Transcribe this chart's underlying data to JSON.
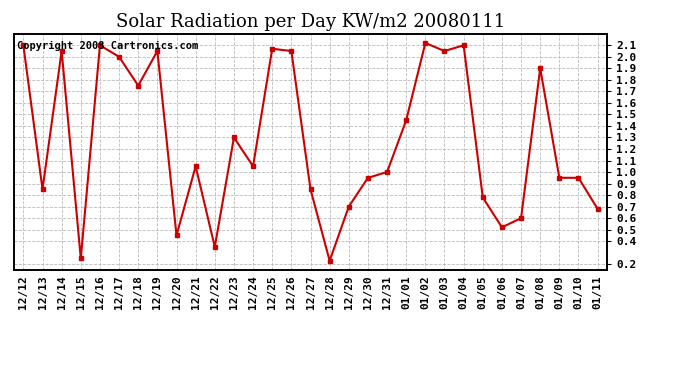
{
  "title": "Solar Radiation per Day KW/m2 20080111",
  "copyright": "Copyright 2008 Cartronics.com",
  "labels": [
    "12/12",
    "12/13",
    "12/14",
    "12/15",
    "12/16",
    "12/17",
    "12/18",
    "12/19",
    "12/20",
    "12/21",
    "12/22",
    "12/23",
    "12/24",
    "12/25",
    "12/26",
    "12/27",
    "12/28",
    "12/29",
    "12/30",
    "12/31",
    "01/01",
    "01/02",
    "01/03",
    "01/04",
    "01/05",
    "01/06",
    "01/07",
    "01/08",
    "01/09",
    "01/10",
    "01/11"
  ],
  "values": [
    2.1,
    0.85,
    2.05,
    0.25,
    2.1,
    2.0,
    1.75,
    2.05,
    0.45,
    1.05,
    0.35,
    1.3,
    1.05,
    2.07,
    2.05,
    0.85,
    0.23,
    0.7,
    0.95,
    1.0,
    1.45,
    2.12,
    2.05,
    2.1,
    0.78,
    0.52,
    0.6,
    1.9,
    0.95,
    0.95,
    0.68
  ],
  "line_color": "#cc0000",
  "marker": "s",
  "markersize": 3,
  "linewidth": 1.5,
  "ylim": [
    0.15,
    2.2
  ],
  "yticks": [
    0.2,
    0.4,
    0.5,
    0.6,
    0.7,
    0.8,
    0.9,
    1.0,
    1.1,
    1.2,
    1.3,
    1.4,
    1.5,
    1.6,
    1.7,
    1.8,
    1.9,
    2.0,
    2.1
  ],
  "bg_color": "#ffffff",
  "grid_color": "#bbbbbb",
  "title_fontsize": 13,
  "copyright_fontsize": 7.5,
  "tick_fontsize": 8,
  "figwidth": 6.9,
  "figheight": 3.75
}
